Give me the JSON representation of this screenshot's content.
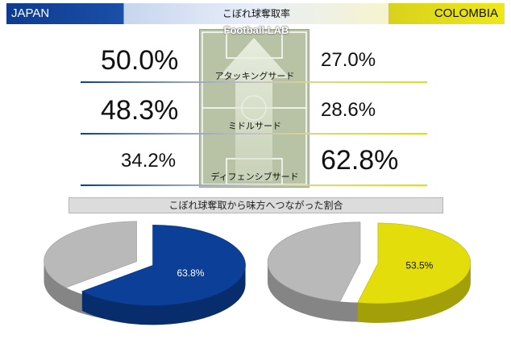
{
  "header": {
    "team_left": "JAPAN",
    "title": "こぼれ球奪取率",
    "team_right": "COLOMBIA"
  },
  "brand": "Football LAB",
  "zones": [
    {
      "label": "アタッキングサード",
      "japan": "50.0%",
      "colombia": "27.0%"
    },
    {
      "label": "ミドルサード",
      "japan": "48.3%",
      "colombia": "28.6%"
    },
    {
      "label": "ディフェンシブサード",
      "japan": "34.2%",
      "colombia": "62.8%"
    }
  ],
  "subtitle": "こぼれ球奪取から味方へつながった割合",
  "colors": {
    "japan": "#0b3f98",
    "colombia": "#e3dd0c",
    "rest": "#b9b9b9"
  },
  "chart_data": [
    {
      "type": "bar",
      "title": "こぼれ球奪取率",
      "categories": [
        "アタッキングサード",
        "ミドルサード",
        "ディフェンシブサード"
      ],
      "series": [
        {
          "name": "JAPAN",
          "values": [
            50.0,
            48.3,
            34.2
          ]
        },
        {
          "name": "COLOMBIA",
          "values": [
            27.0,
            28.6,
            62.8
          ]
        }
      ]
    },
    {
      "type": "pie",
      "title": "こぼれ球奪取から味方へつながった割合",
      "series": [
        {
          "name": "JAPAN",
          "values": [
            63.8,
            36.2
          ],
          "label": "63.8%"
        },
        {
          "name": "COLOMBIA",
          "values": [
            53.5,
            46.5
          ],
          "label": "53.5%"
        }
      ]
    }
  ]
}
